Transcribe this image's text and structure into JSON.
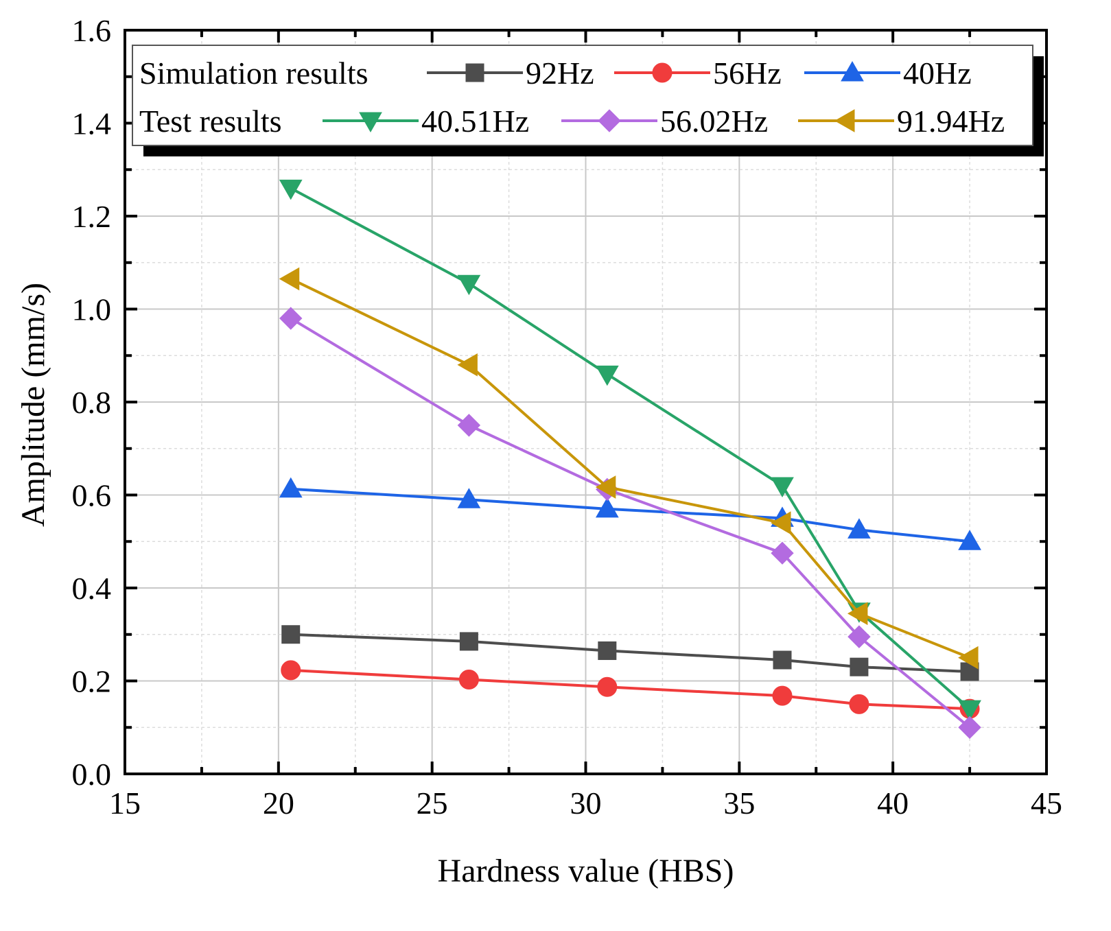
{
  "chart_data": {
    "type": "line",
    "xlabel": "Hardness value (HBS)",
    "ylabel": "Amplitude (mm/s)",
    "xlim": [
      15,
      45
    ],
    "ylim": [
      0.0,
      1.6
    ],
    "x_ticks": [
      "15",
      "20",
      "25",
      "30",
      "35",
      "40",
      "45"
    ],
    "y_ticks": [
      "0.0",
      "0.2",
      "0.4",
      "0.6",
      "0.8",
      "1.0",
      "1.2",
      "1.4",
      "1.6"
    ],
    "grid": true,
    "legend_position": "top",
    "legend_groups": [
      {
        "label": "Simulation results",
        "series": [
          "92Hz",
          "56Hz",
          "40Hz"
        ]
      },
      {
        "label": "Test results",
        "series": [
          "40.51Hz",
          "56.02Hz",
          "91.94Hz"
        ]
      }
    ],
    "x": [
      20.4,
      26.2,
      30.7,
      36.4,
      38.9,
      42.5
    ],
    "series": [
      {
        "name": "92Hz",
        "group": "Simulation results",
        "color": "#4d4d4d",
        "marker": "square",
        "values": [
          0.3,
          0.285,
          0.265,
          0.245,
          0.23,
          0.22
        ]
      },
      {
        "name": "56Hz",
        "group": "Simulation results",
        "color": "#f03c3c",
        "marker": "circle",
        "values": [
          0.223,
          0.203,
          0.187,
          0.168,
          0.15,
          0.14
        ]
      },
      {
        "name": "40Hz",
        "group": "Simulation results",
        "color": "#1e64e6",
        "marker": "triangle-up",
        "values": [
          0.613,
          0.59,
          0.57,
          0.55,
          0.525,
          0.5
        ]
      },
      {
        "name": "40.51Hz",
        "group": "Test results",
        "color": "#28a468",
        "marker": "triangle-down",
        "values": [
          1.26,
          1.055,
          0.86,
          0.62,
          0.35,
          0.14
        ]
      },
      {
        "name": "56.02Hz",
        "group": "Test results",
        "color": "#b36be0",
        "marker": "diamond",
        "values": [
          0.98,
          0.75,
          0.612,
          0.475,
          0.295,
          0.1
        ]
      },
      {
        "name": "91.94Hz",
        "group": "Test results",
        "color": "#c8960a",
        "marker": "triangle-left",
        "values": [
          1.065,
          0.88,
          0.617,
          0.54,
          0.345,
          0.25
        ]
      }
    ]
  }
}
